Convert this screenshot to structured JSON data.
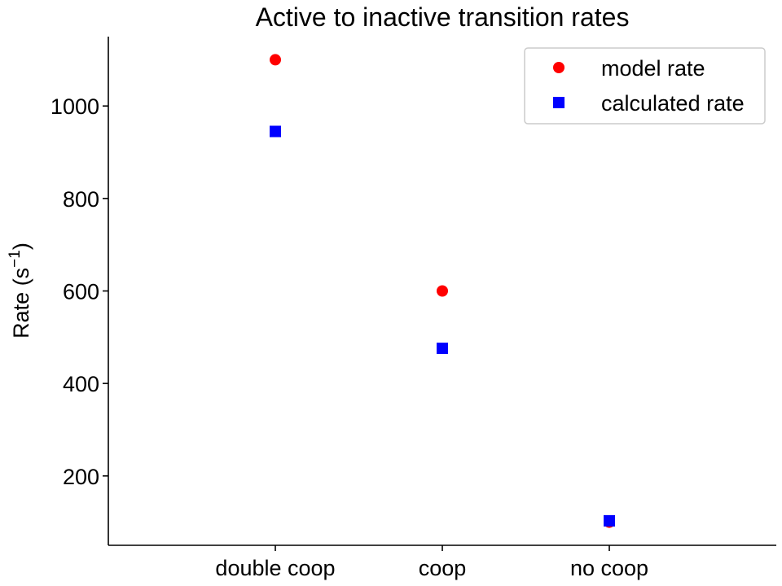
{
  "chart_data": {
    "type": "scatter",
    "title": "Active to inactive transition rates",
    "xlabel": "",
    "ylabel_main": "Rate (s",
    "ylabel_sup": "−1",
    "ylabel_close": ")",
    "categories": [
      "double coop",
      "coop",
      "no coop"
    ],
    "ylim": [
      50,
      1150
    ],
    "yticks": [
      200,
      400,
      600,
      800,
      1000
    ],
    "grid": false,
    "legend_position": "top-right",
    "series": [
      {
        "name": "model rate",
        "marker": "circle",
        "color": "#ff0000",
        "values": [
          1100,
          600,
          100
        ]
      },
      {
        "name": "calculated rate",
        "marker": "square",
        "color": "#0000ff",
        "values": [
          945,
          476,
          103
        ]
      }
    ]
  }
}
